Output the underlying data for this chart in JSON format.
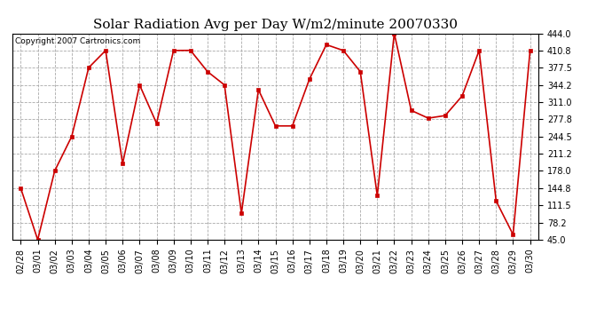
{
  "title": "Solar Radiation Avg per Day W/m2/minute 20070330",
  "copyright": "Copyright 2007 Cartronics.com",
  "labels": [
    "02/28",
    "03/01",
    "03/02",
    "03/03",
    "03/04",
    "03/05",
    "03/06",
    "03/07",
    "03/08",
    "03/09",
    "03/10",
    "03/11",
    "03/12",
    "03/13",
    "03/14",
    "03/15",
    "03/16",
    "03/17",
    "03/18",
    "03/19",
    "03/20",
    "03/21",
    "03/22",
    "03/23",
    "03/24",
    "03/25",
    "03/26",
    "03/27",
    "03/28",
    "03/29",
    "03/30"
  ],
  "values": [
    144.8,
    45.0,
    178.0,
    244.5,
    377.5,
    410.8,
    192.0,
    344.2,
    270.0,
    410.8,
    411.0,
    370.0,
    344.2,
    96.0,
    335.0,
    265.0,
    265.0,
    355.0,
    422.0,
    410.8,
    370.0,
    130.0,
    444.0,
    295.0,
    280.0,
    285.0,
    323.0,
    410.8,
    120.0,
    55.0,
    410.8
  ],
  "ymin": 45.0,
  "ymax": 444.0,
  "yticks": [
    45.0,
    78.2,
    111.5,
    144.8,
    178.0,
    211.2,
    244.5,
    277.8,
    311.0,
    344.2,
    377.5,
    410.8,
    444.0
  ],
  "line_color": "#cc0000",
  "marker_color": "#cc0000",
  "bg_color": "#ffffff",
  "grid_color": "#aaaaaa",
  "title_fontsize": 11,
  "tick_fontsize": 7,
  "copyright_fontsize": 6.5,
  "fig_width": 6.9,
  "fig_height": 3.75,
  "dpi": 100
}
